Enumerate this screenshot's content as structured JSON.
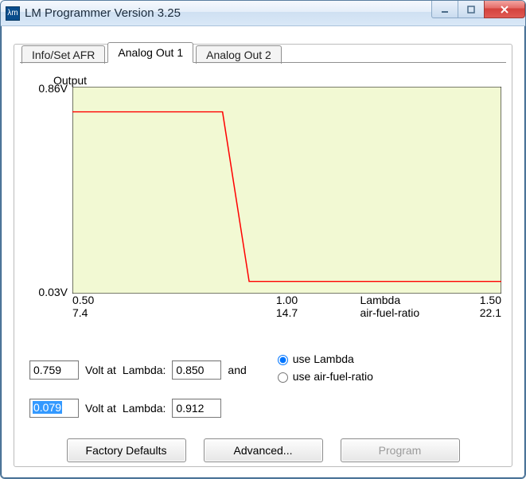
{
  "window": {
    "title": "LM Programmer Version 3.25",
    "icon_label": "λm"
  },
  "tabs": [
    {
      "label": "Info/Set AFR",
      "active": false
    },
    {
      "label": "Analog Out 1",
      "active": true
    },
    {
      "label": "Analog Out 2",
      "active": false
    }
  ],
  "chart": {
    "type": "line",
    "y_axis_label": "Output",
    "ylim": [
      0.03,
      0.86
    ],
    "y_tick_top": "0.86V",
    "y_tick_bottom": "0.03V",
    "xlim": [
      0.5,
      1.5
    ],
    "x_ticks": [
      {
        "pos": "left",
        "row1": "0.50",
        "row2": "7.4"
      },
      {
        "pos": "mid",
        "row1": "1.00",
        "row2": "14.7"
      },
      {
        "pos": "right",
        "row1": "1.50",
        "row2": "22.1"
      }
    ],
    "x_name_row1": "Lambda",
    "x_name_row2": "air-fuel-ratio",
    "series": {
      "points_lambda_volt": [
        [
          0.5,
          0.759
        ],
        [
          0.85,
          0.759
        ],
        [
          0.912,
          0.079
        ],
        [
          1.5,
          0.079
        ]
      ],
      "line_color": "#ff0000",
      "line_width": 1.4
    },
    "plot_background": "#f2f9d3",
    "plot_border_color": "#000000"
  },
  "inputs": {
    "volt1": "0.759",
    "lambda1": "0.850",
    "and_label": "and",
    "volt2": "0.079",
    "lambda2": "0.912",
    "volt_at_label": "Volt at",
    "lambda_label": "Lambda:"
  },
  "radios": {
    "use_lambda": "use Lambda",
    "use_afr": "use air-fuel-ratio",
    "selected": "use_lambda"
  },
  "buttons": {
    "factory": "Factory Defaults",
    "advanced": "Advanced...",
    "program": "Program",
    "program_enabled": false
  }
}
